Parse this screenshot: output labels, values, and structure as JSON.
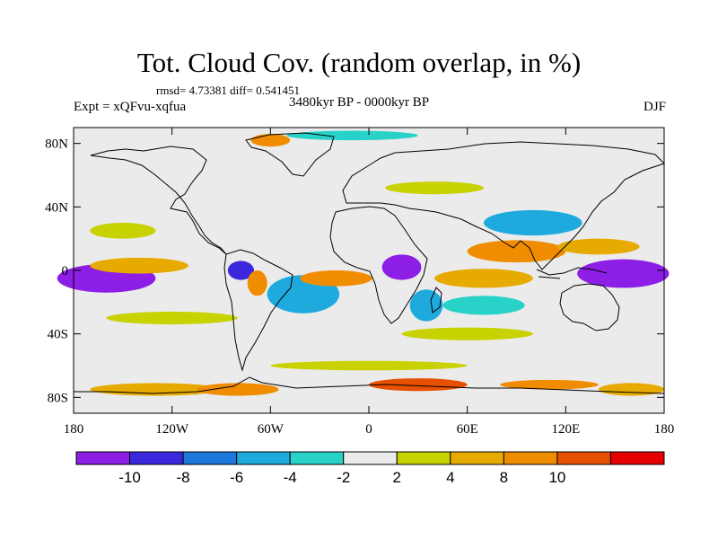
{
  "header": {
    "title": "Tot. Cloud Cov. (random overlap, in %)",
    "stats": "rmsd= 4.73381 diff= 0.541451",
    "experiment": "Expt = xQFvu-xqfua",
    "period": "3480kyr BP - 0000kyr BP",
    "season": "DJF"
  },
  "map": {
    "projection": "cylindrical-equidistant",
    "lon_range": [
      -180,
      180
    ],
    "lat_range": [
      -90,
      90
    ],
    "y_ticks": [
      {
        "lat": 80,
        "label": "80N"
      },
      {
        "lat": 40,
        "label": "40N"
      },
      {
        "lat": 0,
        "label": "0"
      },
      {
        "lat": -40,
        "label": "40S"
      },
      {
        "lat": -80,
        "label": "80S"
      }
    ],
    "x_ticks": [
      {
        "lon": -180,
        "label": "180"
      },
      {
        "lon": -120,
        "label": "120W"
      },
      {
        "lon": -60,
        "label": "60W"
      },
      {
        "lon": 0,
        "label": "0"
      },
      {
        "lon": 60,
        "label": "60E"
      },
      {
        "lon": 120,
        "label": "120E"
      },
      {
        "lon": 180,
        "label": "180"
      }
    ],
    "background_color": "#ebebeb",
    "anomaly_regions": [
      {
        "lon": -160,
        "lat": -5,
        "rlon": 30,
        "rlat": 9,
        "level": -12
      },
      {
        "lon": 155,
        "lat": -2,
        "rlon": 28,
        "rlat": 9,
        "level": -11
      },
      {
        "lon": 20,
        "lat": 2,
        "rlon": 12,
        "rlat": 8,
        "level": -11
      },
      {
        "lon": -78,
        "lat": 0,
        "rlon": 8,
        "rlat": 6,
        "level": -9
      },
      {
        "lon": -40,
        "lat": -15,
        "rlon": 22,
        "rlat": 12,
        "level": -5
      },
      {
        "lon": 35,
        "lat": -22,
        "rlon": 10,
        "rlat": 10,
        "level": -6
      },
      {
        "lon": 70,
        "lat": -22,
        "rlon": 25,
        "rlat": 6,
        "level": -3
      },
      {
        "lon": 100,
        "lat": 30,
        "rlon": 30,
        "rlat": 8,
        "level": -5
      },
      {
        "lon": -10,
        "lat": 85,
        "rlon": 40,
        "rlat": 3,
        "level": -3
      },
      {
        "lon": -140,
        "lat": 3,
        "rlon": 30,
        "rlat": 5,
        "level": 6
      },
      {
        "lon": -20,
        "lat": -5,
        "rlon": 22,
        "rlat": 5,
        "level": 9
      },
      {
        "lon": 90,
        "lat": 12,
        "rlon": 30,
        "rlat": 7,
        "level": 9
      },
      {
        "lon": 140,
        "lat": 15,
        "rlon": 25,
        "rlat": 5,
        "level": 6
      },
      {
        "lon": -68,
        "lat": -8,
        "rlon": 6,
        "rlat": 8,
        "level": 9
      },
      {
        "lon": 70,
        "lat": -5,
        "rlon": 30,
        "rlat": 6,
        "level": 5
      },
      {
        "lon": -120,
        "lat": -30,
        "rlon": 40,
        "rlat": 4,
        "level": 3
      },
      {
        "lon": 60,
        "lat": -40,
        "rlon": 40,
        "rlat": 4,
        "level": 3
      },
      {
        "lon": 40,
        "lat": 52,
        "rlon": 30,
        "rlat": 4,
        "level": 3
      },
      {
        "lon": -150,
        "lat": 25,
        "rlon": 20,
        "rlat": 5,
        "level": 3
      },
      {
        "lon": -60,
        "lat": 82,
        "rlon": 12,
        "rlat": 4,
        "level": 9
      },
      {
        "lon": -130,
        "lat": -75,
        "rlon": 40,
        "rlat": 4,
        "level": 5
      },
      {
        "lon": -80,
        "lat": -75,
        "rlon": 25,
        "rlat": 4,
        "level": 9
      },
      {
        "lon": 30,
        "lat": -72,
        "rlon": 30,
        "rlat": 4,
        "level": 11
      },
      {
        "lon": 110,
        "lat": -72,
        "rlon": 30,
        "rlat": 3,
        "level": 9
      },
      {
        "lon": 160,
        "lat": -75,
        "rlon": 20,
        "rlat": 4,
        "level": 5
      },
      {
        "lon": 0,
        "lat": -60,
        "rlon": 60,
        "rlat": 3,
        "level": 3
      }
    ]
  },
  "colorbar": {
    "colors": [
      "#8c1ee6",
      "#3c28dc",
      "#1e78dc",
      "#1eaadc",
      "#28d2c8",
      "#ebebeb",
      "#c8d200",
      "#e6aa00",
      "#f08c00",
      "#e65000",
      "#e60000"
    ],
    "labels": [
      "-10",
      "-8",
      "-6",
      "-4",
      "-2",
      "2",
      "4",
      "8",
      "10"
    ]
  }
}
